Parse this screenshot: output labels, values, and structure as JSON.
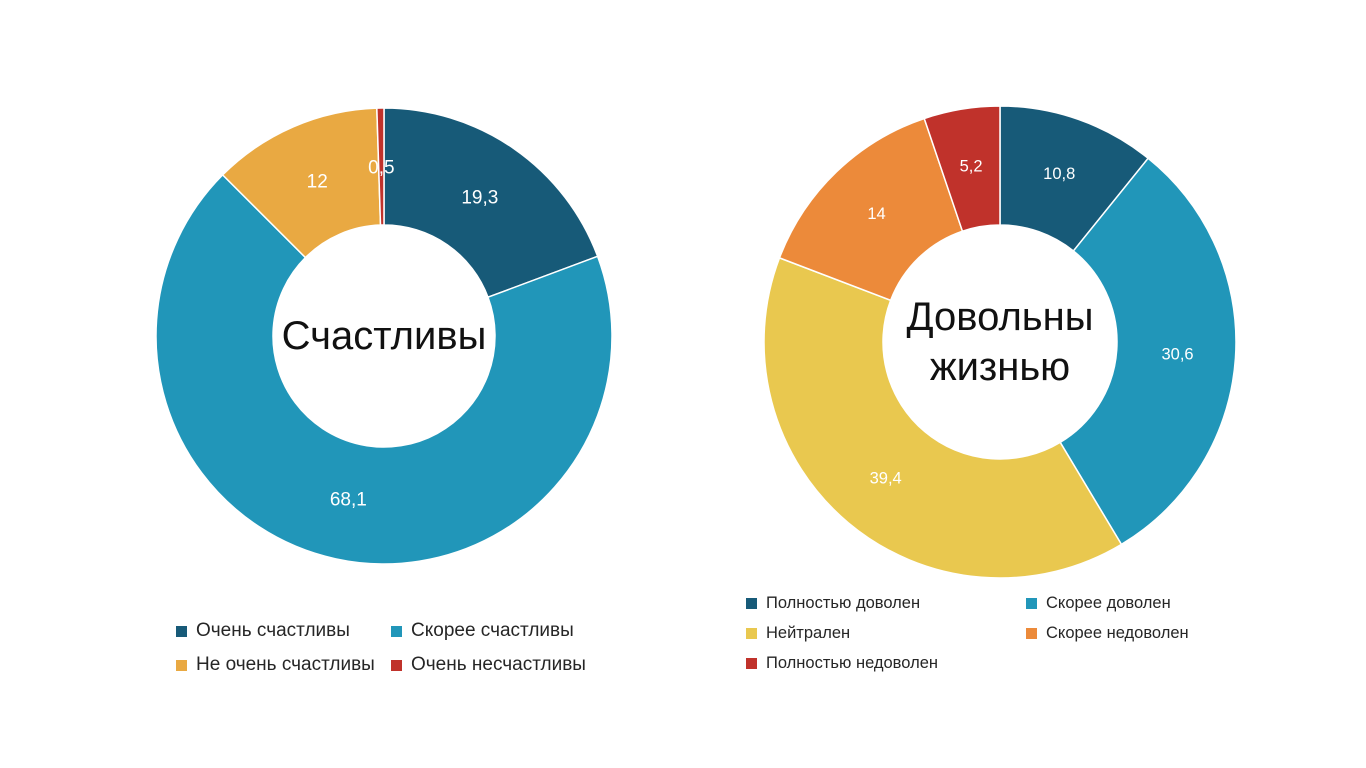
{
  "chart_data": [
    {
      "type": "pie",
      "title": "",
      "center_label": [
        "Счастливы"
      ],
      "categories": [
        "Очень счастливы",
        "Скорее счастливы",
        "Не очень счастливы",
        "Очень несчастливы"
      ],
      "values": [
        19.3,
        68.1,
        12,
        0.5
      ],
      "value_labels": [
        "19,3",
        "68,1",
        "12",
        "0,5"
      ],
      "colors": [
        "#175a78",
        "#2196b9",
        "#e9a942",
        "#c0322b"
      ],
      "legend_position": "bottom"
    },
    {
      "type": "pie",
      "title": "",
      "center_label": [
        "Довольны",
        "жизнью"
      ],
      "categories": [
        "Полностью доволен",
        "Скорее доволен",
        "Нейтрален",
        "Скорее недоволен",
        "Полностью недоволен"
      ],
      "values": [
        10.8,
        30.6,
        39.4,
        14,
        5.2
      ],
      "value_labels": [
        "10,8",
        "30,6",
        "39,4",
        "14",
        "5,2"
      ],
      "colors": [
        "#175a78",
        "#2196b9",
        "#e9c84f",
        "#ec8a3a",
        "#c0322b"
      ],
      "legend_position": "bottom"
    }
  ]
}
